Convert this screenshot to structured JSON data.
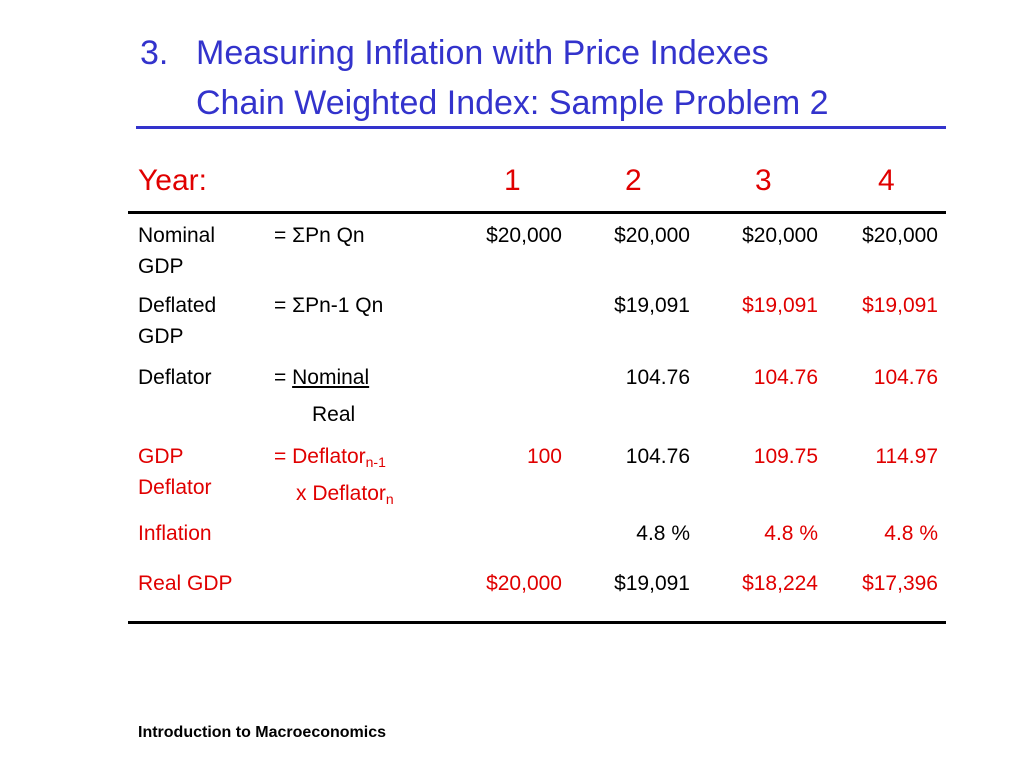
{
  "title": {
    "number": "3.",
    "line1": "Measuring Inflation with Price Indexes",
    "line2": "Chain Weighted Index: Sample Problem 2"
  },
  "header": {
    "year_label": "Year:",
    "years": [
      "1",
      "2",
      "3",
      "4"
    ]
  },
  "rows": {
    "nominal": {
      "label1": "Nominal",
      "label2": "GDP",
      "formula": "= ΣPn Qn",
      "values": [
        "$20,000",
        "$20,000",
        "$20,000",
        "$20,000"
      ]
    },
    "deflated": {
      "label1": "Deflated",
      "label2": "GDP",
      "formula": "= ΣPn-1 Qn",
      "values": [
        "",
        "$19,091",
        "$19,091",
        "$19,091"
      ]
    },
    "deflator": {
      "label": "Deflator",
      "formula_eq": "= ",
      "formula_num": "Nominal",
      "formula_den": "Real",
      "values": [
        "",
        "104.76",
        "104.76",
        "104.76"
      ]
    },
    "gdp_deflator": {
      "label1": "GDP",
      "label2": "Deflator",
      "formula_part1": "= Deflator",
      "sub1": "n-1",
      "formula_part2": "x Deflator",
      "sub2": "n",
      "values": [
        "100",
        "104.76",
        "109.75",
        "114.97"
      ]
    },
    "inflation": {
      "label": "Inflation",
      "values": [
        "",
        "4.8 %",
        "4.8 %",
        "4.8 %"
      ]
    },
    "real_gdp": {
      "label": "Real GDP",
      "values": [
        "$20,000",
        "$19,091",
        "$18,224",
        "$17,396"
      ]
    }
  },
  "footer": "Introduction to Macroeconomics",
  "colors": {
    "title": "#3333cc",
    "highlight": "#e00000",
    "text": "#000000"
  }
}
